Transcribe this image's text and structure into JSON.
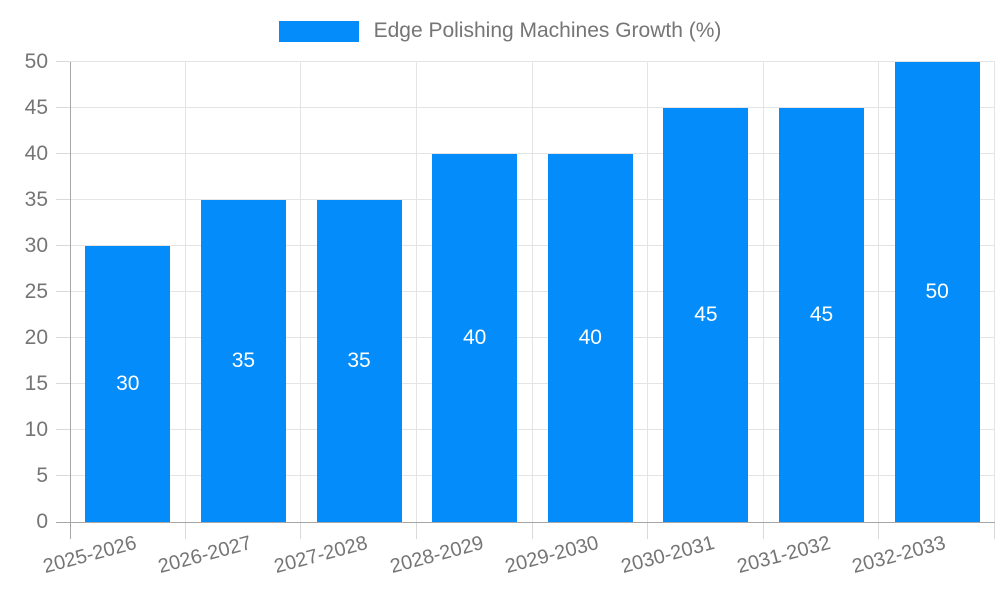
{
  "chart_data": {
    "type": "bar",
    "legend": "Edge Polishing Machines Growth (%)",
    "legend_position": "top",
    "categories": [
      "2025-2026",
      "2026-2027",
      "2027-2028",
      "2028-2029",
      "2029-2030",
      "2030-2031",
      "2031-2032",
      "2032-2033"
    ],
    "values": [
      30,
      35,
      35,
      40,
      40,
      45,
      45,
      50
    ],
    "data_labels": [
      "30",
      "35",
      "35",
      "40",
      "40",
      "45",
      "45",
      "50"
    ],
    "y_tick_labels": [
      "0",
      "5",
      "10",
      "15",
      "20",
      "25",
      "30",
      "35",
      "40",
      "45",
      "50"
    ],
    "ylim": [
      0,
      50
    ],
    "y_tick_step": 5,
    "grid": true,
    "colors": {
      "bar": "#038CFA",
      "bar_value_text": "#ffffff",
      "axis_text": "#757575",
      "legend_text": "#757575",
      "gridline": "#e4e4e4",
      "tick": "#d9d9d9",
      "axis_line": "#a6a6a6",
      "background": "#ffffff"
    }
  }
}
